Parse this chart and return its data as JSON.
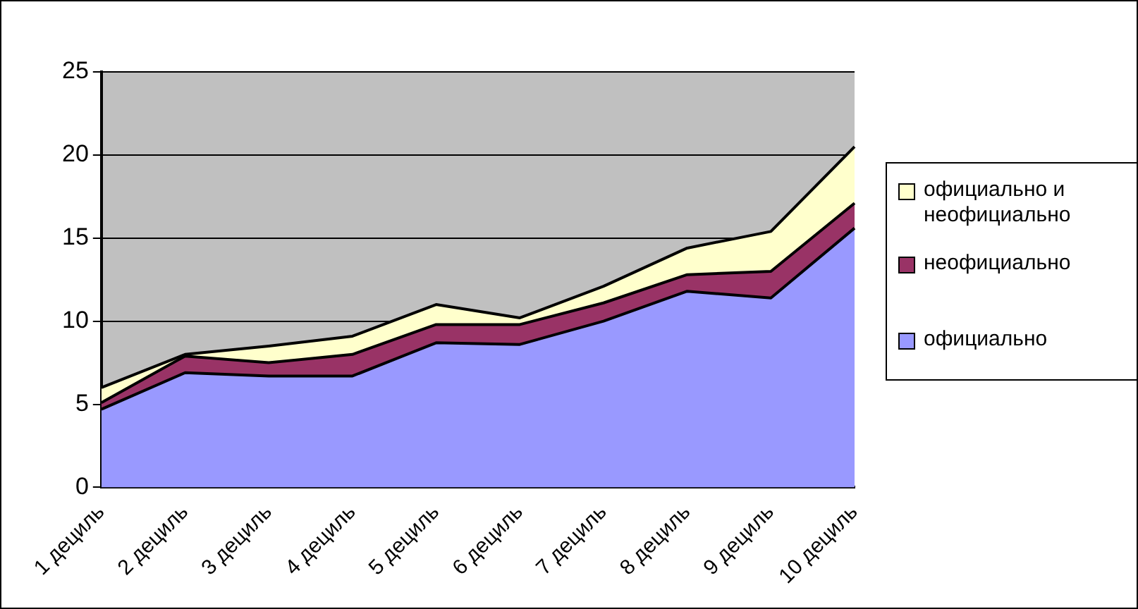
{
  "chart_data": {
    "type": "area",
    "stacked": true,
    "categories": [
      "1 дециль",
      "2 дециль",
      "3 дециль",
      "4 дециль",
      "5 дециль",
      "6 дециль",
      "7 дециль",
      "8 дециль",
      "9 дециль",
      "10 дециль"
    ],
    "series": [
      {
        "name": "официально",
        "color": "#9999ff",
        "values": [
          4.7,
          6.9,
          6.7,
          6.7,
          8.7,
          8.6,
          10.0,
          11.8,
          11.4,
          15.6
        ]
      },
      {
        "name": "неофициально",
        "color": "#993366",
        "values": [
          0.4,
          1.0,
          0.8,
          1.3,
          1.1,
          1.2,
          1.1,
          1.0,
          1.6,
          1.5
        ]
      },
      {
        "name": "официально и неофициально",
        "color": "#ffffcc",
        "values": [
          0.9,
          0.1,
          1.0,
          1.1,
          1.2,
          0.4,
          1.0,
          1.6,
          2.4,
          3.4
        ]
      }
    ],
    "ylim": [
      0,
      25
    ],
    "yticks": [
      0,
      5,
      10,
      15,
      20,
      25
    ],
    "grid": "y",
    "legend": "right"
  }
}
